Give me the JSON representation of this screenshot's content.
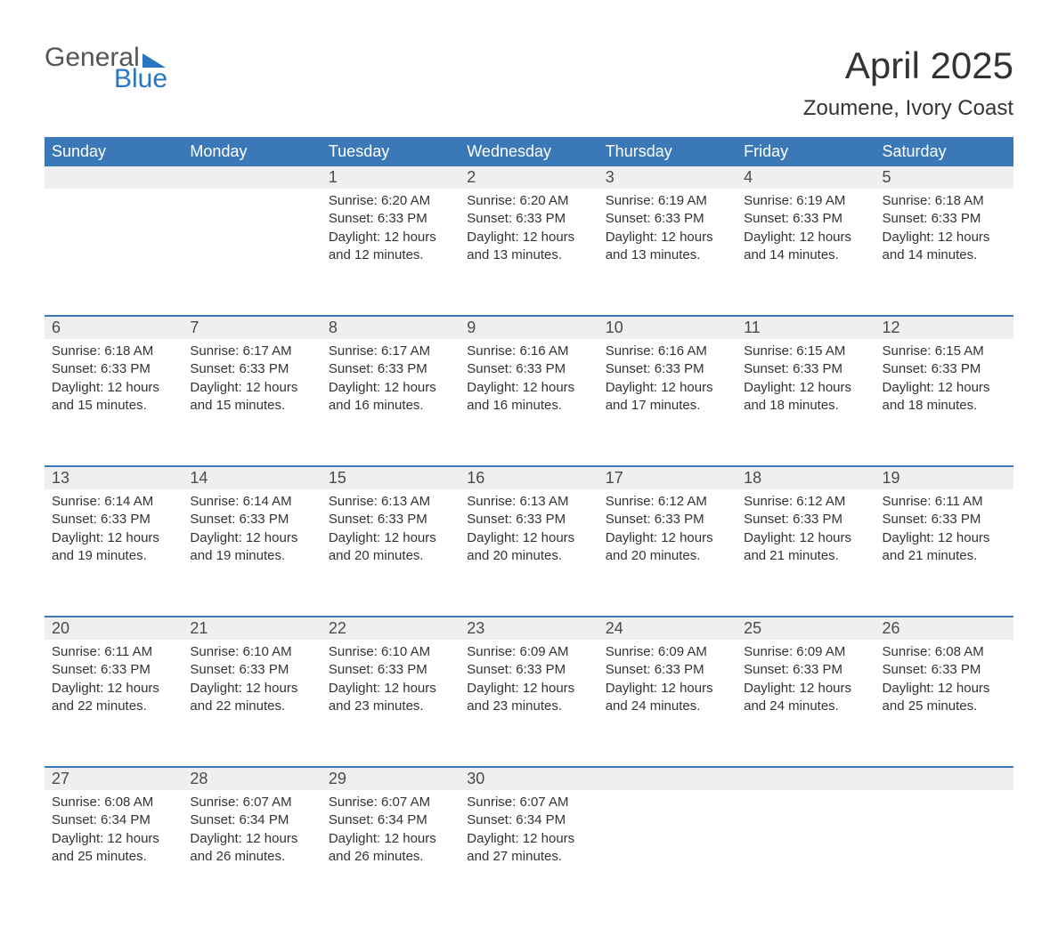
{
  "logo": {
    "line1": "General",
    "line2": "Blue"
  },
  "title": "April 2025",
  "subtitle": "Zoumene, Ivory Coast",
  "colors": {
    "header_blue": "#3b78b8",
    "accent_blue": "#1f6db5",
    "light_gray": "#efefef",
    "logo_blue": "#2a76c1",
    "background": "#ffffff",
    "text": "#333333"
  },
  "dayHeaders": [
    "Sunday",
    "Monday",
    "Tuesday",
    "Wednesday",
    "Thursday",
    "Friday",
    "Saturday"
  ],
  "weeks": [
    [
      null,
      null,
      {
        "n": "1",
        "sunrise": "6:20 AM",
        "sunset": "6:33 PM",
        "dl1": "12 hours",
        "dl2": "and 12 minutes."
      },
      {
        "n": "2",
        "sunrise": "6:20 AM",
        "sunset": "6:33 PM",
        "dl1": "12 hours",
        "dl2": "and 13 minutes."
      },
      {
        "n": "3",
        "sunrise": "6:19 AM",
        "sunset": "6:33 PM",
        "dl1": "12 hours",
        "dl2": "and 13 minutes."
      },
      {
        "n": "4",
        "sunrise": "6:19 AM",
        "sunset": "6:33 PM",
        "dl1": "12 hours",
        "dl2": "and 14 minutes."
      },
      {
        "n": "5",
        "sunrise": "6:18 AM",
        "sunset": "6:33 PM",
        "dl1": "12 hours",
        "dl2": "and 14 minutes."
      }
    ],
    [
      {
        "n": "6",
        "sunrise": "6:18 AM",
        "sunset": "6:33 PM",
        "dl1": "12 hours",
        "dl2": "and 15 minutes."
      },
      {
        "n": "7",
        "sunrise": "6:17 AM",
        "sunset": "6:33 PM",
        "dl1": "12 hours",
        "dl2": "and 15 minutes."
      },
      {
        "n": "8",
        "sunrise": "6:17 AM",
        "sunset": "6:33 PM",
        "dl1": "12 hours",
        "dl2": "and 16 minutes."
      },
      {
        "n": "9",
        "sunrise": "6:16 AM",
        "sunset": "6:33 PM",
        "dl1": "12 hours",
        "dl2": "and 16 minutes."
      },
      {
        "n": "10",
        "sunrise": "6:16 AM",
        "sunset": "6:33 PM",
        "dl1": "12 hours",
        "dl2": "and 17 minutes."
      },
      {
        "n": "11",
        "sunrise": "6:15 AM",
        "sunset": "6:33 PM",
        "dl1": "12 hours",
        "dl2": "and 18 minutes."
      },
      {
        "n": "12",
        "sunrise": "6:15 AM",
        "sunset": "6:33 PM",
        "dl1": "12 hours",
        "dl2": "and 18 minutes."
      }
    ],
    [
      {
        "n": "13",
        "sunrise": "6:14 AM",
        "sunset": "6:33 PM",
        "dl1": "12 hours",
        "dl2": "and 19 minutes."
      },
      {
        "n": "14",
        "sunrise": "6:14 AM",
        "sunset": "6:33 PM",
        "dl1": "12 hours",
        "dl2": "and 19 minutes."
      },
      {
        "n": "15",
        "sunrise": "6:13 AM",
        "sunset": "6:33 PM",
        "dl1": "12 hours",
        "dl2": "and 20 minutes."
      },
      {
        "n": "16",
        "sunrise": "6:13 AM",
        "sunset": "6:33 PM",
        "dl1": "12 hours",
        "dl2": "and 20 minutes."
      },
      {
        "n": "17",
        "sunrise": "6:12 AM",
        "sunset": "6:33 PM",
        "dl1": "12 hours",
        "dl2": "and 20 minutes."
      },
      {
        "n": "18",
        "sunrise": "6:12 AM",
        "sunset": "6:33 PM",
        "dl1": "12 hours",
        "dl2": "and 21 minutes."
      },
      {
        "n": "19",
        "sunrise": "6:11 AM",
        "sunset": "6:33 PM",
        "dl1": "12 hours",
        "dl2": "and 21 minutes."
      }
    ],
    [
      {
        "n": "20",
        "sunrise": "6:11 AM",
        "sunset": "6:33 PM",
        "dl1": "12 hours",
        "dl2": "and 22 minutes."
      },
      {
        "n": "21",
        "sunrise": "6:10 AM",
        "sunset": "6:33 PM",
        "dl1": "12 hours",
        "dl2": "and 22 minutes."
      },
      {
        "n": "22",
        "sunrise": "6:10 AM",
        "sunset": "6:33 PM",
        "dl1": "12 hours",
        "dl2": "and 23 minutes."
      },
      {
        "n": "23",
        "sunrise": "6:09 AM",
        "sunset": "6:33 PM",
        "dl1": "12 hours",
        "dl2": "and 23 minutes."
      },
      {
        "n": "24",
        "sunrise": "6:09 AM",
        "sunset": "6:33 PM",
        "dl1": "12 hours",
        "dl2": "and 24 minutes."
      },
      {
        "n": "25",
        "sunrise": "6:09 AM",
        "sunset": "6:33 PM",
        "dl1": "12 hours",
        "dl2": "and 24 minutes."
      },
      {
        "n": "26",
        "sunrise": "6:08 AM",
        "sunset": "6:33 PM",
        "dl1": "12 hours",
        "dl2": "and 25 minutes."
      }
    ],
    [
      {
        "n": "27",
        "sunrise": "6:08 AM",
        "sunset": "6:34 PM",
        "dl1": "12 hours",
        "dl2": "and 25 minutes."
      },
      {
        "n": "28",
        "sunrise": "6:07 AM",
        "sunset": "6:34 PM",
        "dl1": "12 hours",
        "dl2": "and 26 minutes."
      },
      {
        "n": "29",
        "sunrise": "6:07 AM",
        "sunset": "6:34 PM",
        "dl1": "12 hours",
        "dl2": "and 26 minutes."
      },
      {
        "n": "30",
        "sunrise": "6:07 AM",
        "sunset": "6:34 PM",
        "dl1": "12 hours",
        "dl2": "and 27 minutes."
      },
      null,
      null,
      null
    ]
  ],
  "labels": {
    "sunrise": "Sunrise: ",
    "sunset": "Sunset: ",
    "daylight": "Daylight: "
  }
}
